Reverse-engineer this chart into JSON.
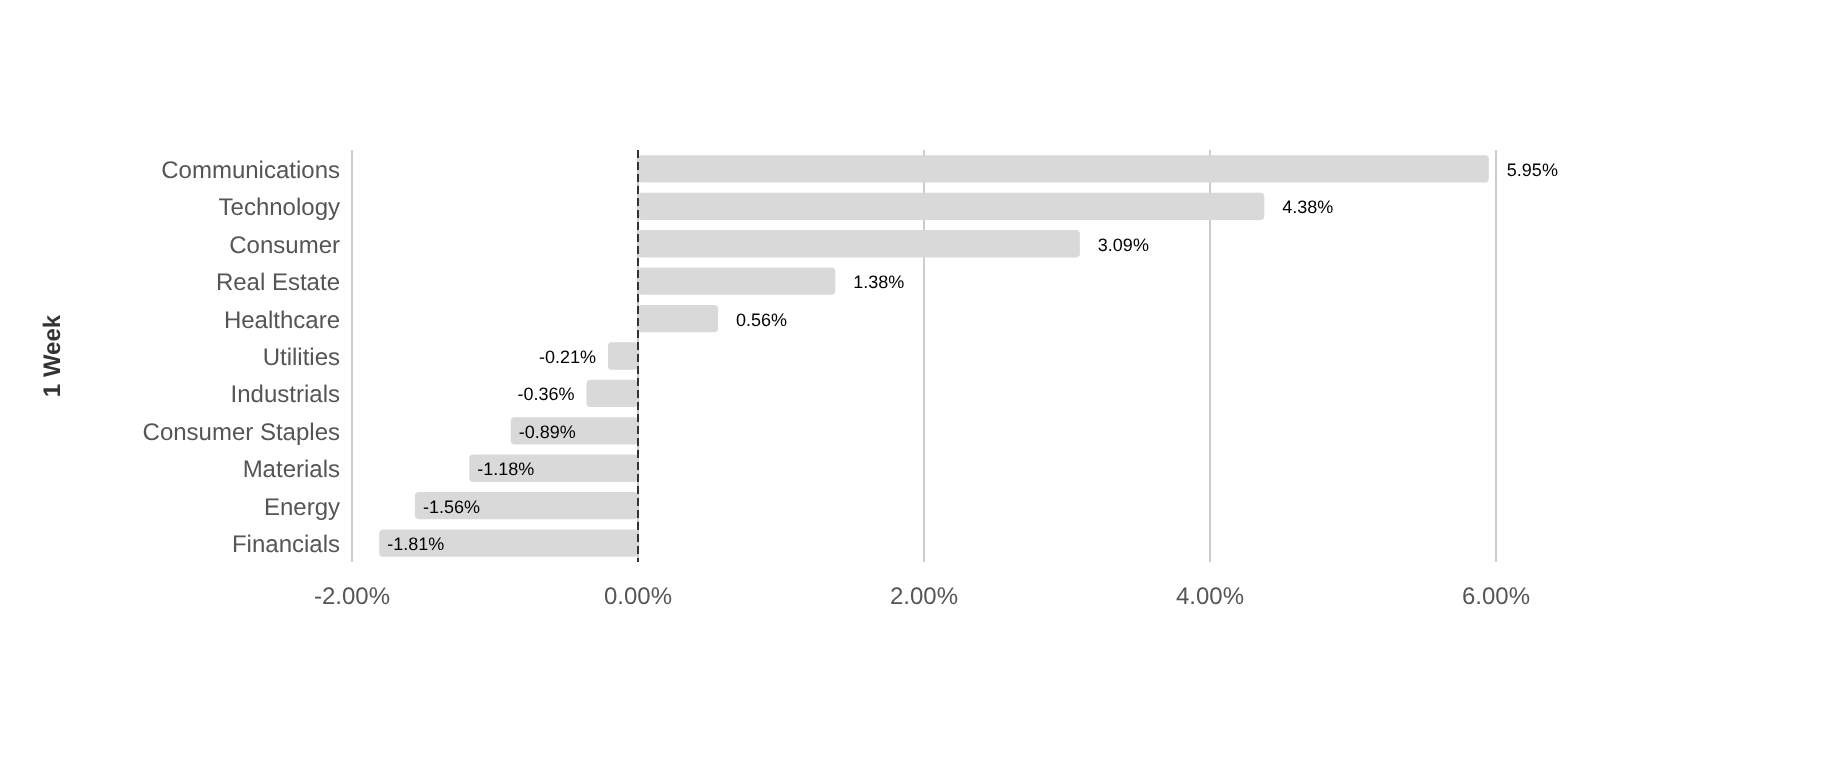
{
  "chart_data": {
    "type": "bar",
    "orientation": "horizontal",
    "ylabel": "1 Week",
    "categories": [
      "Communications",
      "Technology",
      "Consumer",
      "Real Estate",
      "Healthcare",
      "Utilities",
      "Industrials",
      "Consumer Staples",
      "Materials",
      "Energy",
      "Financials"
    ],
    "values": [
      5.95,
      4.38,
      3.09,
      1.38,
      0.56,
      -0.21,
      -0.36,
      -0.89,
      -1.18,
      -1.56,
      -1.81
    ],
    "value_labels": [
      "5.95%",
      "4.38%",
      "3.09%",
      "1.38%",
      "0.56%",
      "-0.21%",
      "-0.36%",
      "-0.89%",
      "-1.18%",
      "-1.56%",
      "-1.81%"
    ],
    "color": "#d9d9d9",
    "xlim": [
      -2,
      6
    ],
    "xticks": [
      {
        "value": -2,
        "label": "-2.00%"
      },
      {
        "value": 0,
        "label": "0.00%"
      },
      {
        "value": 2,
        "label": "2.00%"
      },
      {
        "value": 4,
        "label": "4.00%"
      },
      {
        "value": 6,
        "label": "6.00%"
      }
    ],
    "grid": "x",
    "ref_lines": [
      {
        "axis": "x",
        "value": 0,
        "color": "#333333",
        "line_style": "dashed"
      }
    ]
  }
}
